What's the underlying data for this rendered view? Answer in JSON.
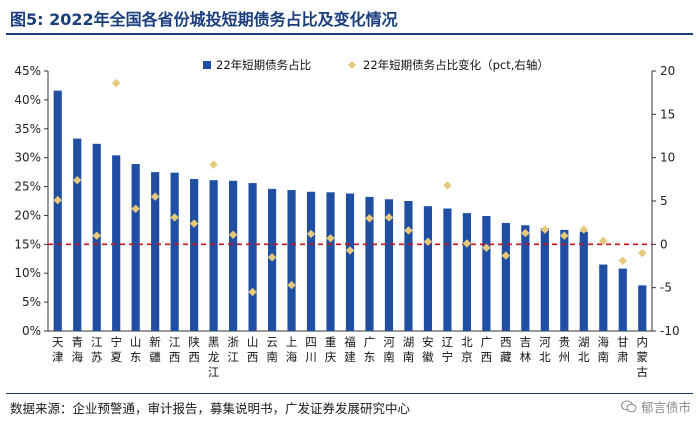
{
  "header": {
    "title": "图5:  2022年全国各省份城投短期债务占比及变化情况"
  },
  "footer": {
    "source": "数据来源：企业预警通，审计报告，募集说明书，广发证券发展研究中心",
    "watermark": "郁言债市"
  },
  "colors": {
    "bar": "#1f4ea3",
    "diamond": "#e6c87a",
    "dashed_line": "#c0151e",
    "title": "#1a3d7c"
  },
  "chart_data": {
    "type": "bar",
    "categories": [
      "天津",
      "青海",
      "江苏",
      "宁夏",
      "山东",
      "新疆",
      "江西",
      "陕西",
      "黑龙江",
      "浙江",
      "山西",
      "云南",
      "上海",
      "四川",
      "重庆",
      "福建",
      "广东",
      "河南",
      "湖南",
      "安徽",
      "辽宁",
      "北京",
      "广西",
      "西藏",
      "吉林",
      "河北",
      "贵州",
      "湖北",
      "海南",
      "甘肃",
      "内蒙古"
    ],
    "series": [
      {
        "name": "22年短期债务占比",
        "axis": "left",
        "type": "bar",
        "values": [
          41.6,
          33.3,
          32.4,
          30.4,
          28.9,
          27.5,
          27.4,
          26.3,
          26.1,
          26.0,
          25.6,
          24.6,
          24.4,
          24.1,
          24.0,
          23.8,
          23.2,
          22.8,
          22.5,
          21.6,
          21.2,
          20.4,
          19.9,
          18.7,
          18.3,
          17.8,
          17.5,
          17.2,
          11.5,
          10.8,
          7.9
        ]
      },
      {
        "name": "22年短期债务占比变化（pct,右轴）",
        "axis": "right",
        "type": "scatter",
        "values": [
          5.1,
          7.4,
          1.0,
          18.6,
          4.1,
          5.5,
          3.1,
          2.4,
          9.2,
          1.1,
          -5.5,
          -1.5,
          -4.7,
          1.2,
          0.7,
          -0.7,
          3.0,
          3.1,
          1.6,
          0.3,
          6.8,
          0.1,
          -0.4,
          -1.3,
          1.3,
          1.7,
          1.0,
          1.7,
          0.4,
          -1.9,
          -1.0
        ]
      }
    ],
    "y_left": {
      "min": 0,
      "max": 45,
      "step": 5,
      "ticks": [
        "0%",
        "5%",
        "10%",
        "15%",
        "20%",
        "25%",
        "30%",
        "35%",
        "40%",
        "45%"
      ]
    },
    "y_right": {
      "min": -10,
      "max": 20,
      "step": 5,
      "ticks": [
        "-10",
        "-5",
        "0",
        "5",
        "10",
        "15",
        "20"
      ]
    },
    "legend": {
      "placement": "top"
    },
    "grid": false
  }
}
